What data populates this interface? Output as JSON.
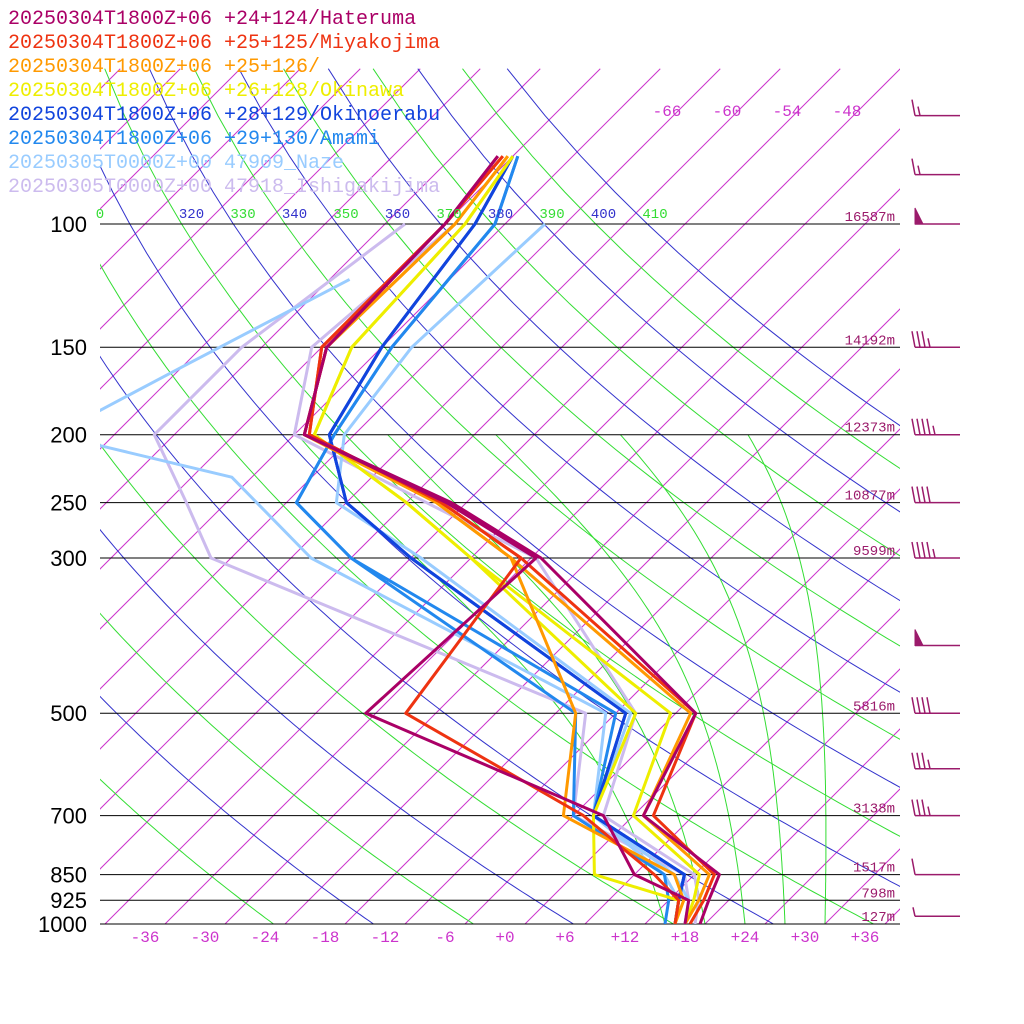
{
  "chart_data": {
    "type": "line",
    "title": "",
    "xlabel": "",
    "ylabel": "",
    "pressure_levels": [
      100,
      150,
      200,
      250,
      300,
      500,
      700,
      850,
      925,
      1000
    ],
    "pressure_labels": [
      "100",
      "150",
      "200",
      "250",
      "300",
      "500",
      "700",
      "850",
      "925",
      "1000"
    ],
    "height_labels": [
      "16587m",
      "14192m",
      "12373m",
      "10877m",
      "9599m",
      "5816m",
      "3138m",
      "1517m",
      "798m",
      "127m"
    ],
    "x_ticks": [
      -36,
      -30,
      -24,
      -18,
      -12,
      -6,
      0,
      6,
      12,
      18,
      24,
      30,
      36
    ],
    "x_tick_labels": [
      "-36",
      "-30",
      "-24",
      "-18",
      "-12",
      "-6",
      "+0",
      "+6",
      "+12",
      "+18",
      "+24",
      "+30",
      "+36"
    ],
    "upper_isotherm_labels": [
      "-66",
      "-60",
      "-54",
      "-48"
    ],
    "theta_labels": [
      {
        "text": "0",
        "color": "#33dd33"
      },
      {
        "text": "320",
        "color": "#3333cc"
      },
      {
        "text": "330",
        "color": "#33dd33"
      },
      {
        "text": "340",
        "color": "#3333cc"
      },
      {
        "text": "350",
        "color": "#33dd33"
      },
      {
        "text": "360",
        "color": "#3333cc"
      },
      {
        "text": "370",
        "color": "#33dd33"
      },
      {
        "text": "380",
        "color": "#3333cc"
      },
      {
        "text": "390",
        "color": "#33dd33"
      },
      {
        "text": "400",
        "color": "#3333cc"
      },
      {
        "text": "410",
        "color": "#33dd33"
      }
    ],
    "xlim": [
      -36,
      36
    ],
    "ylim": [
      1000,
      100
    ],
    "series": [
      {
        "name": "20250304T1800Z+06 +24+124/Hateruma",
        "color": "#aa0066",
        "kind": "forecast",
        "temp": [
          [
            -77.5,
            80
          ],
          [
            -76,
            100
          ],
          [
            -75.5,
            150
          ],
          [
            -69,
            200
          ],
          [
            -47.5,
            250
          ],
          [
            -33,
            300
          ],
          [
            -2,
            500
          ],
          [
            3,
            700
          ],
          [
            16.5,
            850
          ],
          [
            18,
            925
          ],
          [
            19.5,
            1000
          ]
        ],
        "dew": [
          [
            -77.5,
            80
          ],
          [
            -76,
            100
          ],
          [
            -75.5,
            150
          ],
          [
            -69,
            200
          ],
          [
            -48,
            250
          ],
          [
            -33.5,
            300
          ],
          [
            -35,
            500
          ],
          [
            -1,
            700
          ],
          [
            8,
            850
          ],
          [
            16,
            925
          ],
          [
            18,
            1000
          ]
        ]
      },
      {
        "name": "20250304T1800Z+06 +25+125/Miyakojima",
        "color": "#ee3311",
        "kind": "forecast",
        "temp": [
          [
            -77,
            80
          ],
          [
            -76,
            100
          ],
          [
            -76,
            150
          ],
          [
            -68.5,
            200
          ],
          [
            -48.5,
            250
          ],
          [
            -35,
            300
          ],
          [
            -2,
            500
          ],
          [
            4,
            700
          ],
          [
            16,
            850
          ],
          [
            17.5,
            925
          ],
          [
            18.5,
            1000
          ]
        ],
        "dew": [
          [
            -77,
            80
          ],
          [
            -76,
            100
          ],
          [
            -76,
            150
          ],
          [
            -68.5,
            200
          ],
          [
            -48.5,
            250
          ],
          [
            -35,
            300
          ],
          [
            -31,
            500
          ],
          [
            -3,
            700
          ],
          [
            10,
            850
          ],
          [
            15,
            925
          ],
          [
            17,
            1000
          ]
        ]
      },
      {
        "name": "20250304T1800Z+06 +25+126/",
        "color": "#ff9900",
        "kind": "forecast",
        "temp": [
          [
            -76.5,
            80
          ],
          [
            -75,
            100
          ],
          [
            -75.5,
            150
          ],
          [
            -69,
            200
          ],
          [
            -49,
            250
          ],
          [
            -36,
            300
          ],
          [
            -2.5,
            500
          ],
          [
            3,
            700
          ],
          [
            15.5,
            850
          ],
          [
            17,
            925
          ],
          [
            18,
            1000
          ]
        ],
        "dew": [
          [
            -76.5,
            80
          ],
          [
            -75,
            100
          ],
          [
            -75.5,
            150
          ],
          [
            -69,
            200
          ],
          [
            -49,
            250
          ],
          [
            -36,
            300
          ],
          [
            -14,
            500
          ],
          [
            -5,
            700
          ],
          [
            12,
            850
          ],
          [
            15.5,
            925
          ],
          [
            17,
            1000
          ]
        ]
      },
      {
        "name": "20250304T1800Z+06 +26+128/Okinawa",
        "color": "#eeee00",
        "kind": "forecast",
        "temp": [
          [
            -76,
            80
          ],
          [
            -74,
            100
          ],
          [
            -73,
            150
          ],
          [
            -68,
            200
          ],
          [
            -52,
            250
          ],
          [
            -40,
            300
          ],
          [
            -4.5,
            500
          ],
          [
            2,
            700
          ],
          [
            14.5,
            850
          ],
          [
            16.5,
            925
          ],
          [
            18,
            1000
          ]
        ],
        "dew": [
          [
            -76,
            80
          ],
          [
            -74,
            100
          ],
          [
            -73,
            150
          ],
          [
            -68,
            200
          ],
          [
            -52,
            250
          ],
          [
            -40,
            300
          ],
          [
            -8,
            500
          ],
          [
            -2,
            700
          ],
          [
            4,
            850
          ],
          [
            15,
            925
          ],
          [
            17,
            1000
          ]
        ]
      },
      {
        "name": "20250304T1800Z+06 +28+129/Okinoerabu",
        "color": "#1144dd",
        "kind": "forecast",
        "temp": [
          [
            -76,
            80
          ],
          [
            -73,
            100
          ],
          [
            -70,
            150
          ],
          [
            -66.5,
            200
          ],
          [
            -58,
            250
          ],
          [
            -46,
            300
          ],
          [
            -9,
            500
          ],
          [
            -2,
            700
          ],
          [
            13,
            850
          ],
          [
            15,
            925
          ],
          [
            17,
            1000
          ]
        ],
        "dew": [
          [
            -76,
            80
          ],
          [
            -73,
            100
          ],
          [
            -70,
            150
          ],
          [
            -66.5,
            200
          ],
          [
            -58,
            250
          ],
          [
            -46,
            300
          ],
          [
            -9,
            500
          ],
          [
            -2,
            700
          ],
          [
            13,
            850
          ],
          [
            15,
            925
          ],
          [
            17,
            1000
          ]
        ]
      },
      {
        "name": "20250304T1800Z+06 +29+130/Amami",
        "color": "#2288ee",
        "kind": "forecast",
        "temp": [
          [
            -75.5,
            80
          ],
          [
            -71,
            100
          ],
          [
            -69,
            150
          ],
          [
            -66,
            200
          ],
          [
            -63,
            250
          ],
          [
            -52,
            300
          ],
          [
            -10,
            500
          ],
          [
            -2,
            700
          ],
          [
            13,
            850
          ],
          [
            15,
            925
          ],
          [
            17,
            1000
          ]
        ],
        "dew": [
          [
            -75.5,
            80
          ],
          [
            -71,
            100
          ],
          [
            -69,
            150
          ],
          [
            -66,
            200
          ],
          [
            -63,
            250
          ],
          [
            -52,
            300
          ],
          [
            -14,
            500
          ],
          [
            -4,
            700
          ],
          [
            11,
            850
          ],
          [
            14,
            925
          ],
          [
            16,
            1000
          ]
        ]
      },
      {
        "name": "20250305T0000Z+00 47909_Naze",
        "color": "#99ccff",
        "kind": "observed",
        "temp": [
          [
            -66,
            100
          ],
          [
            -67,
            150
          ],
          [
            -65,
            200
          ],
          [
            -59,
            250
          ],
          [
            -45,
            300
          ],
          [
            -8.5,
            500
          ],
          [
            -2,
            700
          ],
          [
            12,
            850
          ],
          [
            16,
            925
          ],
          [
            18,
            1000
          ]
        ],
        "dew": [
          [
            -80,
            120
          ],
          [
            -88,
            160
          ],
          [
            -94,
            200
          ],
          [
            -72,
            230
          ],
          [
            -56,
            300
          ],
          [
            -11,
            500
          ],
          [
            -2,
            700
          ],
          [
            11,
            850
          ],
          [
            15,
            925
          ],
          [
            17,
            1000
          ]
        ]
      },
      {
        "name": "20250305T0000Z+00 47918_Ishigakijima",
        "color": "#ccbbee",
        "kind": "observed",
        "temp": [
          [
            -75,
            100
          ],
          [
            -77,
            150
          ],
          [
            -70,
            200
          ],
          [
            -50,
            250
          ],
          [
            -33.5,
            300
          ],
          [
            -8,
            500
          ],
          [
            -1,
            700
          ],
          [
            14,
            850
          ],
          [
            17,
            925
          ],
          [
            19,
            1000
          ]
        ],
        "dew": [
          [
            -80,
            100
          ],
          [
            -84,
            150
          ],
          [
            -84,
            200
          ],
          [
            -74,
            250
          ],
          [
            -66,
            300
          ],
          [
            -13,
            500
          ],
          [
            -4,
            700
          ],
          [
            13,
            850
          ],
          [
            16,
            925
          ],
          [
            18,
            1000
          ]
        ]
      }
    ],
    "wind_barbs": [
      {
        "p": 70,
        "kt": 15
      },
      {
        "p": 85,
        "kt": 15
      },
      {
        "p": 100,
        "kt": 50
      },
      {
        "p": 150,
        "kt": 35
      },
      {
        "p": 200,
        "kt": 45
      },
      {
        "p": 250,
        "kt": 40
      },
      {
        "p": 300,
        "kt": 45
      },
      {
        "p": 400,
        "kt": 50
      },
      {
        "p": 500,
        "kt": 40
      },
      {
        "p": 600,
        "kt": 35
      },
      {
        "p": 700,
        "kt": 35
      },
      {
        "p": 850,
        "kt": 10
      },
      {
        "p": 975,
        "kt": 5
      }
    ]
  }
}
